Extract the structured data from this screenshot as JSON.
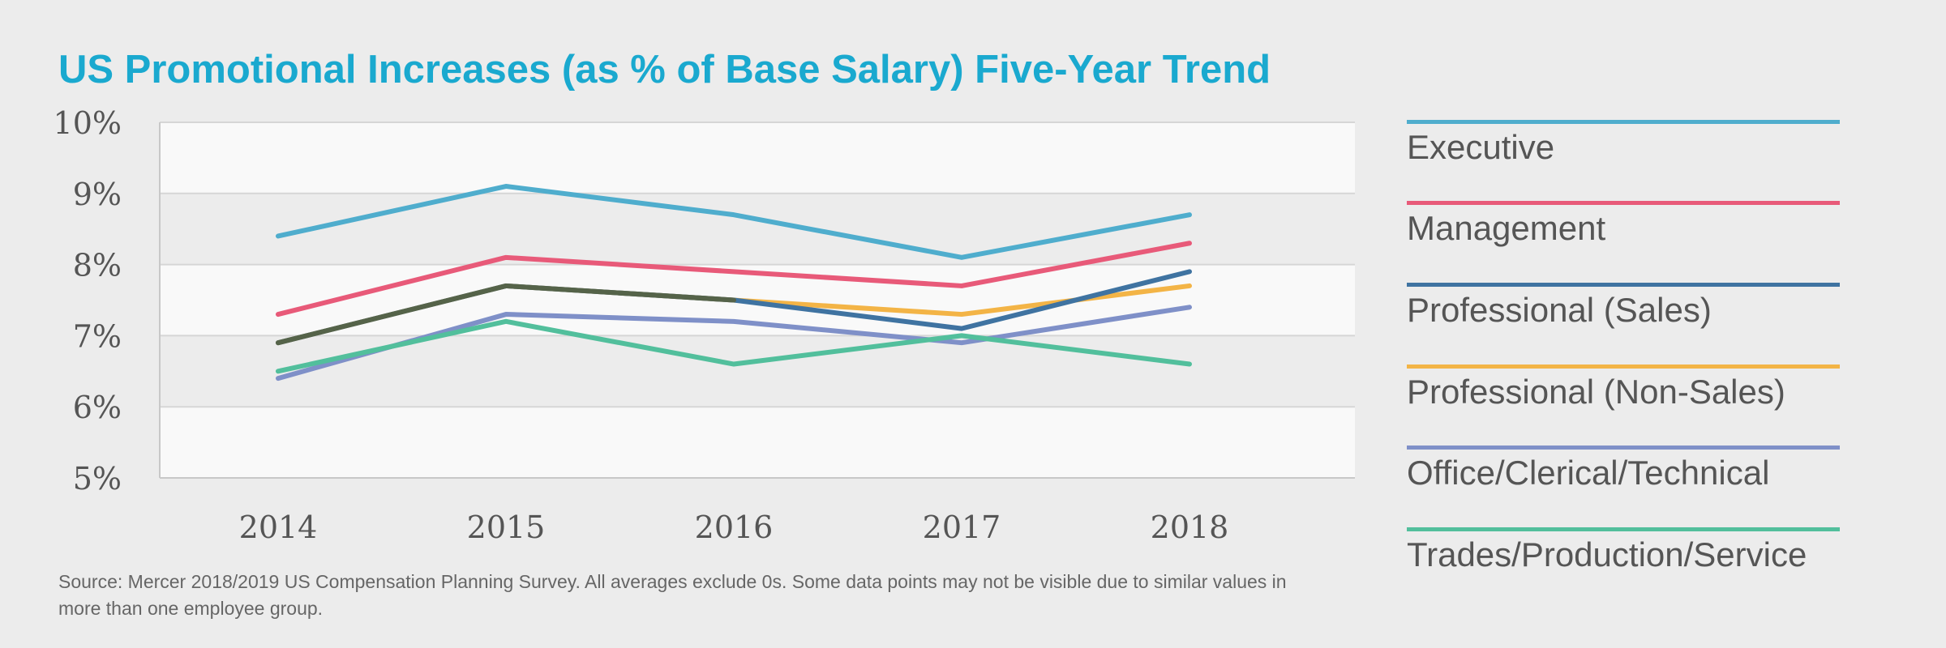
{
  "title": "US Promotional Increases (as % of Base Salary) Five-Year Trend",
  "source": "Source: Mercer 2018/2019 US Compensation Planning Survey. All averages exclude 0s. Some data points may not be visible due to similar values in more than one employee group.",
  "chart_data": {
    "type": "line",
    "title": "US Promotional Increases (as % of Base Salary) Five-Year Trend",
    "xlabel": "",
    "ylabel": "",
    "x": [
      "2014",
      "2015",
      "2016",
      "2017",
      "2018"
    ],
    "ylim": [
      5,
      10
    ],
    "yticks": [
      "10%",
      "9%",
      "8%",
      "7%",
      "6%",
      "5%"
    ],
    "ytick_values": [
      10,
      9,
      8,
      7,
      6,
      5
    ],
    "grid": true,
    "legend_position": "right",
    "series": [
      {
        "name": "Executive",
        "color": "#4fadcd",
        "values": [
          8.4,
          9.1,
          8.7,
          8.1,
          8.7
        ]
      },
      {
        "name": "Management",
        "color": "#e85a79",
        "values": [
          7.3,
          8.1,
          7.9,
          7.7,
          8.3
        ]
      },
      {
        "name": "Professional (Sales)",
        "color": "#3f73a1",
        "values": [
          6.9,
          7.7,
          7.5,
          7.1,
          7.9
        ]
      },
      {
        "name": "Professional (Non-Sales)",
        "color": "#f3b446",
        "values": [
          6.9,
          7.7,
          7.5,
          7.3,
          7.7
        ]
      },
      {
        "name": "Office/Clerical/Technical",
        "color": "#7f90c8",
        "values": [
          6.4,
          7.3,
          7.2,
          6.9,
          7.4
        ]
      },
      {
        "name": "Trades/Production/Service",
        "color": "#52bf9c",
        "values": [
          6.5,
          7.2,
          6.6,
          7.0,
          6.6
        ]
      }
    ],
    "overlap_color": "#556349"
  }
}
